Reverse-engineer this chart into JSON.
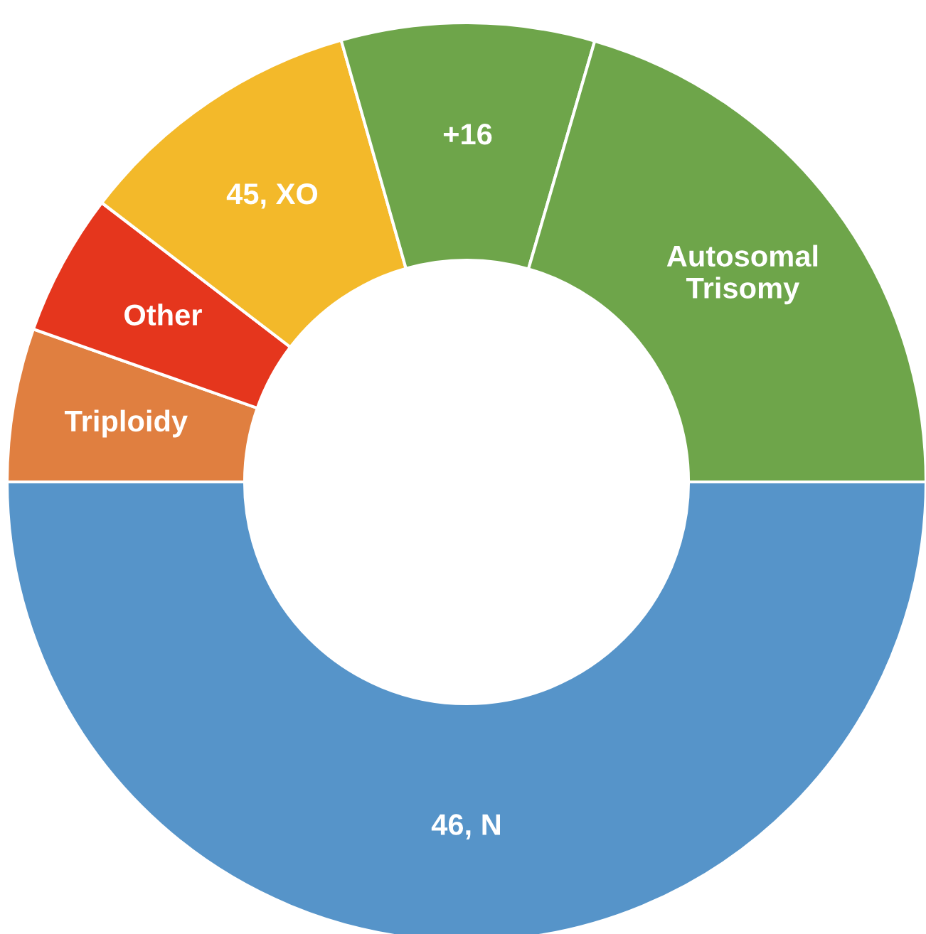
{
  "chart_data": {
    "type": "donut",
    "categories": [
      "46, N",
      "Triploidy",
      "Other",
      "45, XO",
      "+16",
      "Autosomal\nTrisomy"
    ],
    "values": [
      50,
      5.4,
      5,
      10.2,
      8.9,
      20.5
    ],
    "colors": [
      "#5694c9",
      "#e07f40",
      "#e5361d",
      "#f3b92a",
      "#6ea54a",
      "#6ea54a"
    ]
  }
}
